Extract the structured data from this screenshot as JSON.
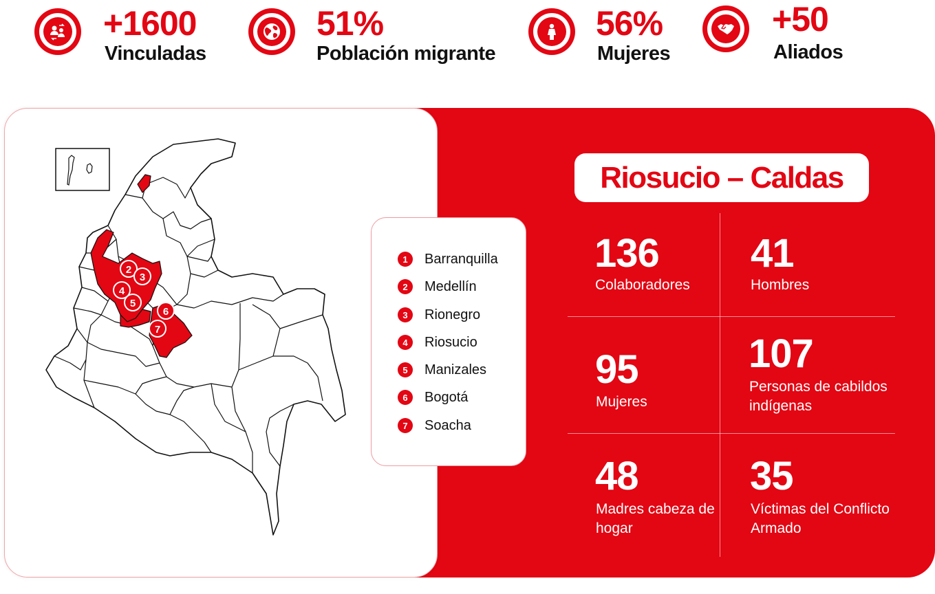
{
  "stats": [
    {
      "value": "+1600",
      "label": "Vinculadas",
      "icon": "people-exchange-icon"
    },
    {
      "value": "51%",
      "label": "Población migrante",
      "icon": "globe-icon"
    },
    {
      "value": "56%",
      "label": "Mujeres",
      "icon": "woman-icon"
    },
    {
      "value": "+50",
      "label": "Aliados",
      "icon": "handshake-icon"
    }
  ],
  "legend": [
    {
      "num": "1",
      "label": "Barranquilla"
    },
    {
      "num": "2",
      "label": "Medellín"
    },
    {
      "num": "3",
      "label": "Rionegro"
    },
    {
      "num": "4",
      "label": "Riosucio"
    },
    {
      "num": "5",
      "label": "Manizales"
    },
    {
      "num": "6",
      "label": "Bogotá"
    },
    {
      "num": "7",
      "label": "Soacha"
    }
  ],
  "map_markers": [
    "2",
    "3",
    "4",
    "5",
    "6",
    "7"
  ],
  "panel": {
    "title": "Riosucio – Caldas",
    "cells": [
      {
        "value": "136",
        "label": "Colaboradores"
      },
      {
        "value": "41",
        "label": "Hombres"
      },
      {
        "value": "95",
        "label": "Mujeres"
      },
      {
        "value": "107",
        "label": "Personas de cabildos indígenas"
      },
      {
        "value": "48",
        "label": "Madres cabeza de hogar"
      },
      {
        "value": "35",
        "label": "Víctimas del Conflicto Armado"
      }
    ]
  },
  "colors": {
    "accent": "#e30613",
    "background": "#ffffff",
    "text": "#111111"
  }
}
